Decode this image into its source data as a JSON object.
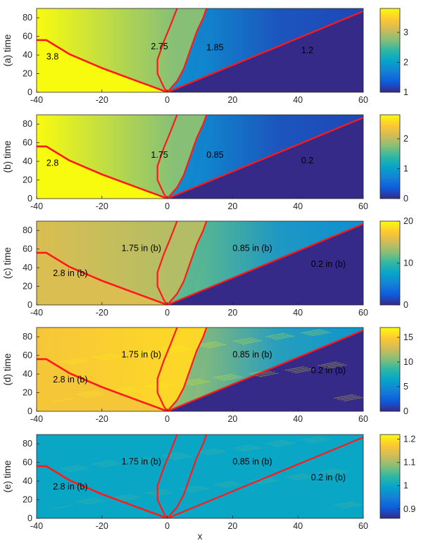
{
  "chart_data": [
    {
      "type": "heatmap",
      "ylabel": "(a) time",
      "xlabel": "",
      "xlim": [
        -40,
        60
      ],
      "ylim": [
        0,
        90
      ],
      "xticks": [
        -40,
        -20,
        0,
        20,
        40,
        60
      ],
      "yticks": [
        0,
        20,
        40,
        60,
        80
      ],
      "colorbar": {
        "range": [
          1,
          3.8
        ],
        "ticks": [
          1,
          2,
          3
        ],
        "colormap": "parula"
      },
      "levels": {
        "left": 3.8,
        "mid_left": 2.75,
        "mid_right": 1.85,
        "right": 1.2,
        "floor": 1.0
      },
      "annotations": [
        {
          "text": "3.8",
          "x": -37,
          "y": 35
        },
        {
          "text": "2.75",
          "x": -5,
          "y": 46
        },
        {
          "text": "1.85",
          "x": 12,
          "y": 45
        },
        {
          "text": "1.2",
          "x": 41,
          "y": 42
        }
      ],
      "red_curves": [
        {
          "points": [
            [
              -40,
              56
            ],
            [
              -37,
              56
            ],
            [
              -30,
              41
            ],
            [
              -20,
              26
            ],
            [
              -10,
              13
            ],
            [
              -3,
              4
            ],
            [
              0,
              0
            ]
          ]
        },
        {
          "points": [
            [
              0,
              0
            ],
            [
              -1,
              5
            ],
            [
              -3,
              20
            ],
            [
              -3,
              35
            ],
            [
              -1,
              55
            ],
            [
              1,
              72
            ],
            [
              3,
              90
            ]
          ]
        },
        {
          "points": [
            [
              0,
              0
            ],
            [
              3,
              12
            ],
            [
              5,
              25
            ],
            [
              7,
              45
            ],
            [
              9,
              65
            ],
            [
              11,
              80
            ],
            [
              12,
              90
            ]
          ]
        },
        {
          "points": [
            [
              0,
              0
            ],
            [
              60,
              87
            ]
          ]
        }
      ]
    },
    {
      "type": "heatmap",
      "ylabel": "(b) time",
      "xlabel": "",
      "xlim": [
        -40,
        60
      ],
      "ylim": [
        0,
        90
      ],
      "xticks": [
        -40,
        -20,
        0,
        20,
        40,
        60
      ],
      "yticks": [
        0,
        20,
        40,
        60,
        80
      ],
      "colorbar": {
        "range": [
          0,
          2.8
        ],
        "ticks": [
          0,
          1,
          2
        ],
        "colormap": "parula"
      },
      "levels": {
        "left": 2.8,
        "mid_left": 1.75,
        "mid_right": 0.85,
        "right": 0.2,
        "floor": 0.0
      },
      "annotations": [
        {
          "text": "2.8",
          "x": -37,
          "y": 35
        },
        {
          "text": "1.75",
          "x": -5,
          "y": 44
        },
        {
          "text": "0.85",
          "x": 12,
          "y": 44
        },
        {
          "text": "0.2",
          "x": 41,
          "y": 38
        }
      ],
      "red_curves": [
        {
          "points": [
            [
              -40,
              56
            ],
            [
              -37,
              56
            ],
            [
              -30,
              41
            ],
            [
              -20,
              26
            ],
            [
              -10,
              13
            ],
            [
              -3,
              4
            ],
            [
              0,
              0
            ]
          ]
        },
        {
          "points": [
            [
              0,
              0
            ],
            [
              -1,
              5
            ],
            [
              -3,
              20
            ],
            [
              -3,
              35
            ],
            [
              -1,
              55
            ],
            [
              1,
              72
            ],
            [
              3,
              90
            ]
          ]
        },
        {
          "points": [
            [
              0,
              0
            ],
            [
              3,
              12
            ],
            [
              5,
              25
            ],
            [
              7,
              45
            ],
            [
              9,
              65
            ],
            [
              11,
              80
            ],
            [
              12,
              90
            ]
          ]
        },
        {
          "points": [
            [
              0,
              0
            ],
            [
              60,
              87
            ]
          ]
        }
      ]
    },
    {
      "type": "heatmap",
      "ylabel": "(c) time",
      "xlabel": "",
      "xlim": [
        -40,
        60
      ],
      "ylim": [
        0,
        90
      ],
      "xticks": [
        -40,
        -20,
        0,
        20,
        40,
        60
      ],
      "yticks": [
        0,
        20,
        40,
        60,
        80
      ],
      "colorbar": {
        "range": [
          0,
          20
        ],
        "ticks": [
          0,
          10,
          20
        ],
        "colormap": "parula"
      },
      "levels": {
        "left": 15.5,
        "mid_left": 14.0,
        "mid_right": 11.5,
        "right": 6.0,
        "floor": 0.0
      },
      "annotations": [
        {
          "text": "2.8 in (b)",
          "x": -35,
          "y": 31
        },
        {
          "text": "1.75 in (b)",
          "x": -14,
          "y": 58
        },
        {
          "text": "0.85 in (b)",
          "x": 20,
          "y": 58
        },
        {
          "text": "0.2 in (b)",
          "x": 44,
          "y": 41
        }
      ],
      "red_curves": [
        {
          "points": [
            [
              -40,
              56
            ],
            [
              -37,
              56
            ],
            [
              -30,
              41
            ],
            [
              -20,
              26
            ],
            [
              -10,
              13
            ],
            [
              -3,
              4
            ],
            [
              0,
              0
            ]
          ]
        },
        {
          "points": [
            [
              0,
              0
            ],
            [
              -1,
              5
            ],
            [
              -3,
              20
            ],
            [
              -3,
              35
            ],
            [
              -1,
              55
            ],
            [
              1,
              72
            ],
            [
              3,
              90
            ]
          ]
        },
        {
          "points": [
            [
              0,
              0
            ],
            [
              3,
              12
            ],
            [
              5,
              25
            ],
            [
              7,
              45
            ],
            [
              9,
              65
            ],
            [
              11,
              80
            ],
            [
              12,
              90
            ]
          ]
        },
        {
          "points": [
            [
              0,
              0
            ],
            [
              60,
              87
            ]
          ]
        }
      ]
    },
    {
      "type": "heatmap",
      "ylabel": "(d) time",
      "xlabel": "",
      "xlim": [
        -40,
        60
      ],
      "ylim": [
        0,
        90
      ],
      "xticks": [
        -40,
        -20,
        0,
        20,
        40,
        60
      ],
      "yticks": [
        0,
        20,
        40,
        60,
        80
      ],
      "colorbar": {
        "range": [
          0,
          17
        ],
        "ticks": [
          0,
          5,
          10,
          15
        ],
        "colormap": "parula"
      },
      "levels": {
        "left": 14.5,
        "mid_left": 15.5,
        "mid_right": 11.0,
        "right": 5.5,
        "floor": 0.0
      },
      "annotations": [
        {
          "text": "2.8 in (b)",
          "x": -35,
          "y": 31
        },
        {
          "text": "1.75 in (b)",
          "x": -14,
          "y": 58
        },
        {
          "text": "0.85 in (b)",
          "x": 20,
          "y": 58
        },
        {
          "text": "0.2 in (b)",
          "x": 44,
          "y": 41
        }
      ],
      "red_curves": [
        {
          "points": [
            [
              -40,
              56
            ],
            [
              -37,
              56
            ],
            [
              -30,
              41
            ],
            [
              -20,
              26
            ],
            [
              -10,
              13
            ],
            [
              -3,
              4
            ],
            [
              0,
              0
            ]
          ]
        },
        {
          "points": [
            [
              0,
              0
            ],
            [
              -1,
              5
            ],
            [
              -3,
              20
            ],
            [
              -3,
              35
            ],
            [
              -1,
              55
            ],
            [
              1,
              72
            ],
            [
              3,
              90
            ]
          ]
        },
        {
          "points": [
            [
              0,
              0
            ],
            [
              3,
              12
            ],
            [
              5,
              25
            ],
            [
              7,
              45
            ],
            [
              9,
              65
            ],
            [
              11,
              80
            ],
            [
              12,
              90
            ]
          ]
        },
        {
          "points": [
            [
              0,
              0
            ],
            [
              60,
              87
            ]
          ]
        }
      ]
    },
    {
      "type": "heatmap",
      "ylabel": "(e) time",
      "xlabel": "x",
      "xlim": [
        -40,
        60
      ],
      "ylim": [
        0,
        90
      ],
      "xticks": [
        -40,
        -20,
        0,
        20,
        40,
        60
      ],
      "yticks": [
        0,
        20,
        40,
        60,
        80
      ],
      "colorbar": {
        "range": [
          0.86,
          1.22
        ],
        "ticks": [
          0.9,
          1,
          1.1,
          1.2
        ],
        "colormap": "parula"
      },
      "levels": {
        "left": 1.0,
        "mid_left": 1.0,
        "mid_right": 1.0,
        "right": 1.0,
        "floor": 1.0
      },
      "annotations": [
        {
          "text": "2.8 in (b)",
          "x": -35,
          "y": 31
        },
        {
          "text": "1.75 in (b)",
          "x": -14,
          "y": 58
        },
        {
          "text": "0.85 in (b)",
          "x": 20,
          "y": 58
        },
        {
          "text": "0.2 in (b)",
          "x": 44,
          "y": 41
        }
      ],
      "red_curves": [
        {
          "points": [
            [
              -40,
              56
            ],
            [
              -37,
              56
            ],
            [
              -30,
              41
            ],
            [
              -20,
              26
            ],
            [
              -10,
              13
            ],
            [
              -3,
              4
            ],
            [
              0,
              0
            ]
          ]
        },
        {
          "points": [
            [
              0,
              0
            ],
            [
              -1,
              5
            ],
            [
              -3,
              20
            ],
            [
              -3,
              35
            ],
            [
              -1,
              55
            ],
            [
              1,
              72
            ],
            [
              3,
              90
            ]
          ]
        },
        {
          "points": [
            [
              0,
              0
            ],
            [
              3,
              12
            ],
            [
              5,
              25
            ],
            [
              7,
              45
            ],
            [
              9,
              65
            ],
            [
              11,
              80
            ],
            [
              12,
              90
            ]
          ]
        },
        {
          "points": [
            [
              0,
              0
            ],
            [
              60,
              87
            ]
          ]
        }
      ]
    }
  ],
  "colors": {
    "curve": "#ff1a1a",
    "colormap_stops": [
      "#352a87",
      "#0f5cdd",
      "#1481d6",
      "#06a4ca",
      "#2eb7a4",
      "#87bf77",
      "#d1bb59",
      "#fec832",
      "#f9fb0e"
    ]
  }
}
